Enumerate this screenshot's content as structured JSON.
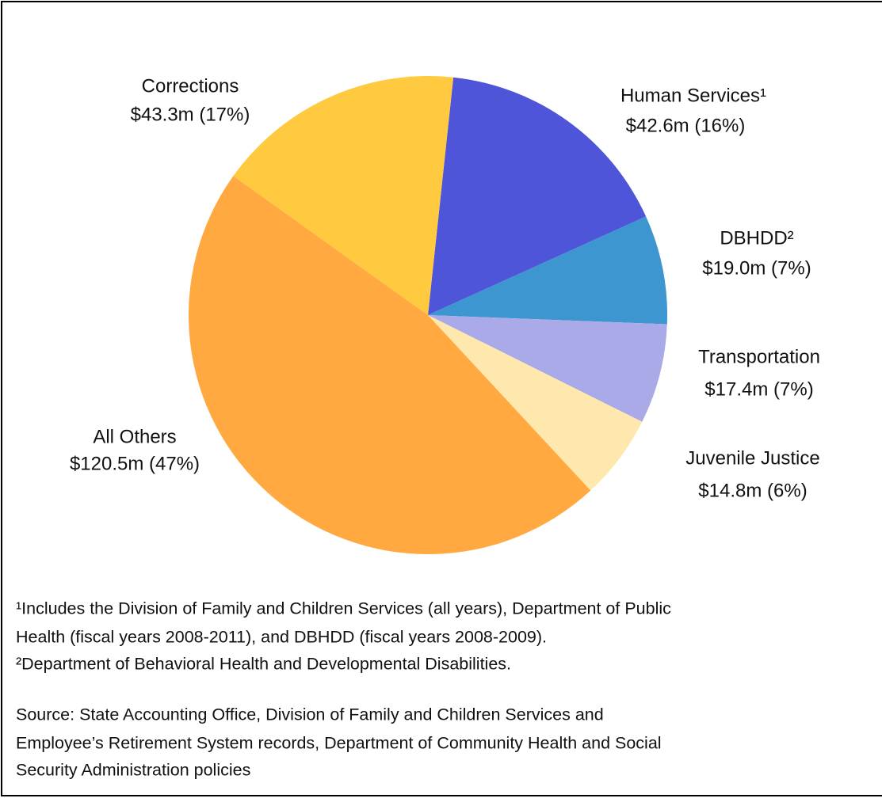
{
  "chart_data": {
    "type": "pie",
    "categories": [
      "Human Services¹",
      "DBHDD²",
      "Transportation",
      "Juvenile Justice",
      "All Others",
      "Corrections"
    ],
    "values": [
      42.6,
      19.0,
      17.4,
      14.8,
      120.5,
      43.3
    ],
    "value_labels": [
      "$42.6m (16%)",
      "$19.0m (7%)",
      "$17.4m (7%)",
      "$14.8m (6%)",
      "$120.5m (47%)",
      "$43.3m (17%)"
    ],
    "colors": [
      "#4f55d8",
      "#3d96d0",
      "#aaaae8",
      "#ffe8ad",
      "#ffa940",
      "#ffca40"
    ],
    "footnotes": [
      "¹Includes the Division of Family and Children Services (all years), Department of Public",
      "Health (fiscal years 2008-2011), and DBHDD (fiscal years 2008-2009).",
      "²Department of Behavioral Health and Developmental Disabilities."
    ],
    "source": [
      "Source: State Accounting Office, Division of Family and Children Services and",
      "Employee’s Retirement System records, Department of Community Health and Social",
      "Security Administration policies"
    ]
  }
}
